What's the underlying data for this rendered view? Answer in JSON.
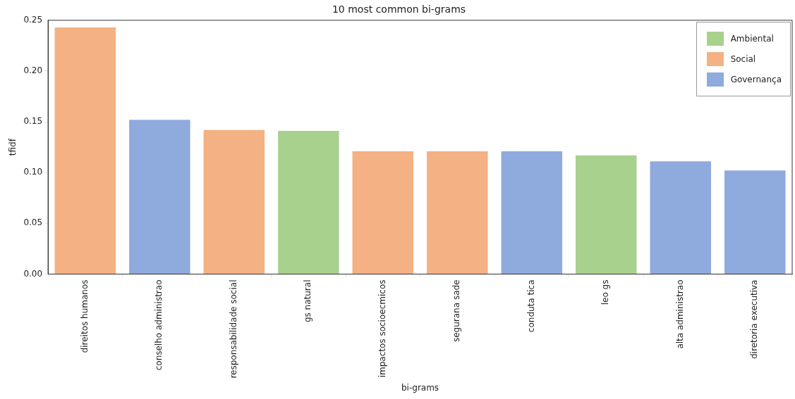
{
  "chart_data": {
    "type": "bar",
    "title": "10 most common bi-grams",
    "xlabel": "bi-grams",
    "ylabel": "tfidf",
    "categories": [
      "direitos humanos",
      "conselho administrao",
      "responsabilidade social",
      "gs natural",
      "impactos socioecmicos",
      "segurana sade",
      "conduta tica",
      "leo gs",
      "alta administrao",
      "diretoria executiva"
    ],
    "series": [
      {
        "name": "Ambiental",
        "color": "#a9d18e",
        "values": [
          null,
          null,
          null,
          0.141,
          null,
          null,
          null,
          0.117,
          null,
          null
        ]
      },
      {
        "name": "Social",
        "color": "#f4b183",
        "values": [
          0.243,
          null,
          0.142,
          null,
          0.121,
          0.121,
          null,
          null,
          null,
          null
        ]
      },
      {
        "name": "Governança",
        "color": "#8faadc",
        "values": [
          null,
          0.152,
          null,
          null,
          null,
          null,
          0.121,
          null,
          0.111,
          0.102
        ]
      }
    ],
    "ylim": [
      0,
      0.25
    ],
    "yticks": [
      {
        "value": 0,
        "label": "0.00"
      },
      {
        "value": 0.05,
        "label": "0.05"
      },
      {
        "value": 0.1,
        "label": "0.10"
      },
      {
        "value": 0.15,
        "label": "0.15"
      },
      {
        "value": 0.2,
        "label": "0.20"
      },
      {
        "value": 0.25,
        "label": "0.25"
      }
    ],
    "grid": false,
    "legend": "top right"
  }
}
